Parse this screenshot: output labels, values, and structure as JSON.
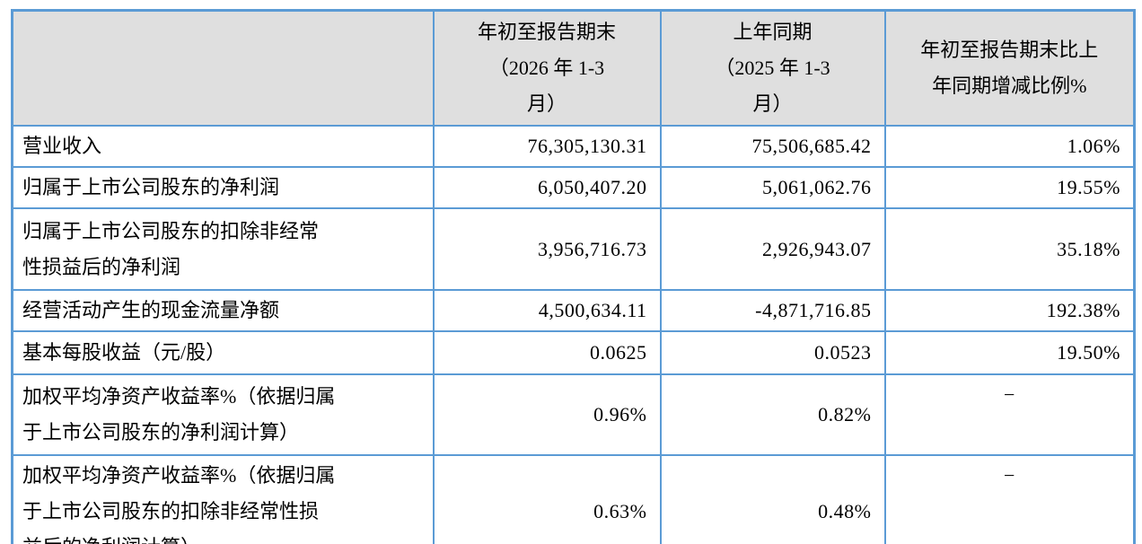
{
  "table": {
    "border_color": "#5B9BD5",
    "header_background": "#DFDFDF",
    "headers": {
      "metric": "",
      "current": "年初至报告期末\n（2026 年 1-3\n月）",
      "prior": "上年同期\n（2025 年 1-3\n月）",
      "change": "年初至报告期末比上\n年同期增减比例%"
    },
    "rows": [
      {
        "metric": "营业收入",
        "current": "76,305,130.31",
        "prior": "75,506,685.42",
        "change": "1.06%"
      },
      {
        "metric": "归属于上市公司股东的净利润",
        "current": "6,050,407.20",
        "prior": "5,061,062.76",
        "change": "19.55%"
      },
      {
        "metric": "归属于上市公司股东的扣除非经常\n性损益后的净利润",
        "current": "3,956,716.73",
        "prior": "2,926,943.07",
        "change": "35.18%"
      },
      {
        "metric": "经营活动产生的现金流量净额",
        "current": "4,500,634.11",
        "prior": "-4,871,716.85",
        "change": "192.38%"
      },
      {
        "metric": "基本每股收益（元/股）",
        "current": "0.0625",
        "prior": "0.0523",
        "change": "19.50%"
      },
      {
        "metric": "加权平均净资产收益率%（依据归属\n于上市公司股东的净利润计算）",
        "current": "0.96%",
        "prior": "0.82%",
        "change": "−"
      },
      {
        "metric": "加权平均净资产收益率%（依据归属\n于上市公司股东的扣除非经常性损\n益后的净利润计算）",
        "current": "0.63%",
        "prior": "0.48%",
        "change": "−"
      }
    ]
  }
}
